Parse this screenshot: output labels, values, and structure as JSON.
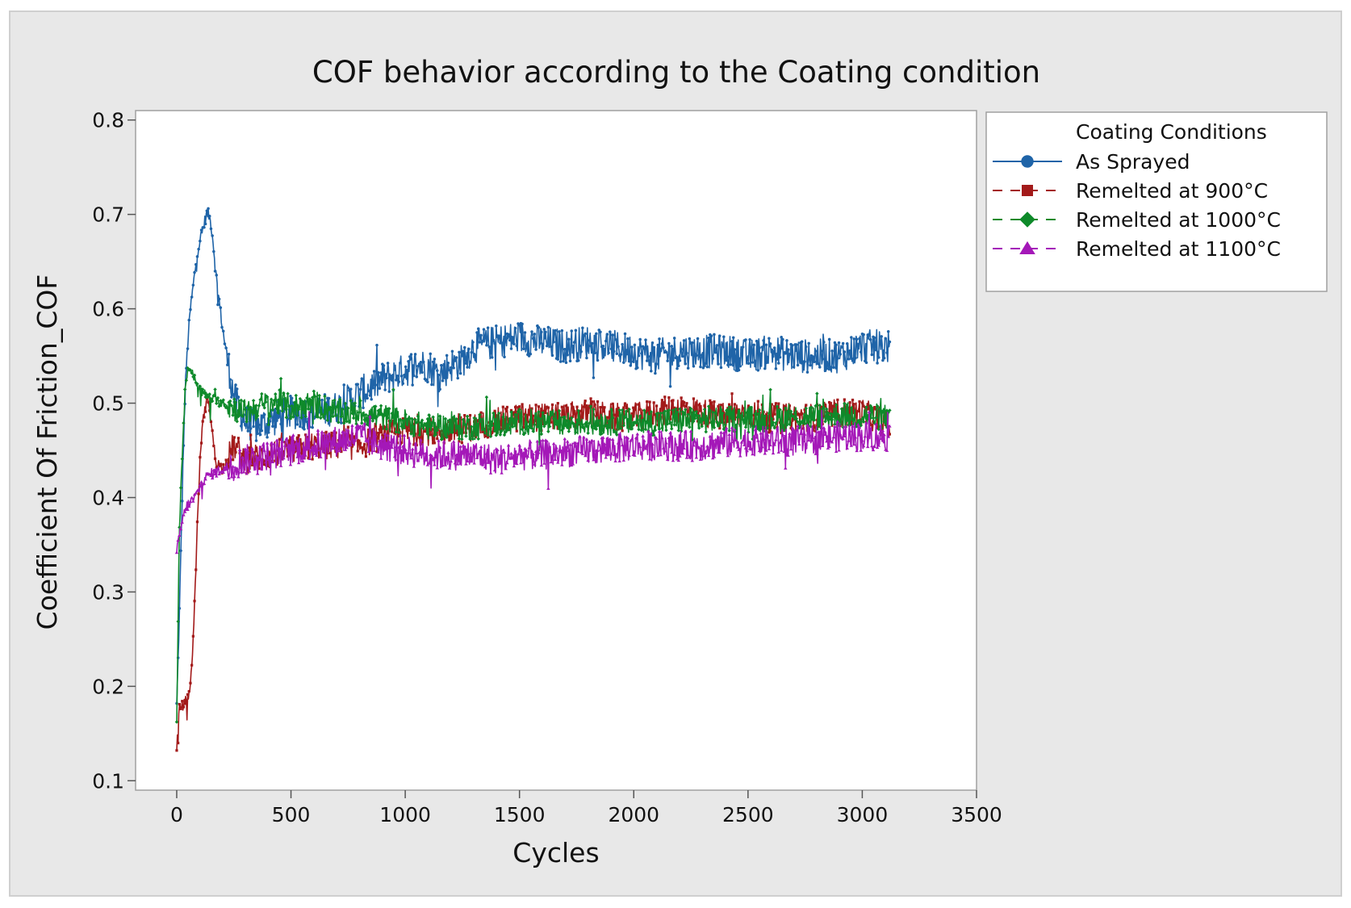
{
  "chart_data": {
    "type": "line",
    "title": "COF behavior according to the Coating condition",
    "xlabel": "Cycles",
    "ylabel": "Coefficient Of Friction_COF",
    "xlim": [
      -180,
      3500
    ],
    "ylim": [
      0.09,
      0.81
    ],
    "xticks": [
      0,
      500,
      1000,
      1500,
      2000,
      2500,
      3000,
      3500
    ],
    "yticks": [
      0.1,
      0.2,
      0.3,
      0.4,
      0.5,
      0.6,
      0.7,
      0.8
    ],
    "grid": false,
    "legend_title": "Coating Conditions",
    "legend_position": "right",
    "series": [
      {
        "name": "As Sprayed",
        "color": "#1f64a8",
        "marker": "circle",
        "dash": "solid",
        "noise": 0.018,
        "x": [
          0,
          10,
          20,
          30,
          40,
          50,
          60,
          70,
          80,
          90,
          100,
          110,
          120,
          130,
          140,
          150,
          160,
          170,
          180,
          190,
          200,
          220,
          240,
          260,
          280,
          300,
          350,
          400,
          450,
          500,
          600,
          700,
          800,
          900,
          1000,
          1050,
          1100,
          1150,
          1200,
          1250,
          1300,
          1400,
          1500,
          1600,
          1700,
          1800,
          1900,
          2000,
          2100,
          2200,
          2300,
          2400,
          2500,
          2600,
          2700,
          2800,
          2900,
          3000,
          3100,
          3120
        ],
        "y": [
          0.18,
          0.26,
          0.36,
          0.46,
          0.53,
          0.57,
          0.6,
          0.62,
          0.64,
          0.66,
          0.67,
          0.68,
          0.69,
          0.7,
          0.7,
          0.69,
          0.67,
          0.64,
          0.62,
          0.6,
          0.58,
          0.55,
          0.52,
          0.5,
          0.49,
          0.48,
          0.475,
          0.48,
          0.485,
          0.49,
          0.49,
          0.495,
          0.51,
          0.525,
          0.535,
          0.54,
          0.54,
          0.53,
          0.54,
          0.545,
          0.56,
          0.565,
          0.57,
          0.565,
          0.56,
          0.565,
          0.56,
          0.555,
          0.55,
          0.555,
          0.555,
          0.555,
          0.55,
          0.555,
          0.55,
          0.55,
          0.55,
          0.56,
          0.56,
          0.56
        ]
      },
      {
        "name": "Remelted at 900°C",
        "color": "#a31a1a",
        "marker": "square",
        "dash": "dashed",
        "noise": 0.015,
        "x": [
          0,
          10,
          20,
          30,
          40,
          50,
          60,
          70,
          80,
          90,
          100,
          110,
          120,
          130,
          140,
          150,
          170,
          200,
          250,
          300,
          400,
          500,
          600,
          700,
          800,
          900,
          1000,
          1100,
          1200,
          1300,
          1400,
          1500,
          1600,
          1700,
          1800,
          1900,
          2000,
          2100,
          2200,
          2300,
          2400,
          2500,
          2600,
          2700,
          2800,
          2900,
          3000,
          3100,
          3120
        ],
        "y": [
          0.13,
          0.175,
          0.18,
          0.18,
          0.185,
          0.19,
          0.2,
          0.24,
          0.3,
          0.37,
          0.43,
          0.47,
          0.49,
          0.5,
          0.505,
          0.48,
          0.44,
          0.43,
          0.455,
          0.44,
          0.445,
          0.45,
          0.455,
          0.455,
          0.455,
          0.465,
          0.47,
          0.47,
          0.47,
          0.475,
          0.48,
          0.485,
          0.485,
          0.485,
          0.49,
          0.485,
          0.485,
          0.49,
          0.495,
          0.49,
          0.485,
          0.49,
          0.485,
          0.485,
          0.485,
          0.49,
          0.49,
          0.48,
          0.47
        ]
      },
      {
        "name": "Remelted at 1000°C",
        "color": "#0e8a2a",
        "marker": "diamond",
        "dash": "dashed",
        "noise": 0.014,
        "x": [
          0,
          5,
          10,
          20,
          30,
          40,
          50,
          60,
          70,
          80,
          90,
          100,
          120,
          150,
          200,
          250,
          300,
          350,
          400,
          450,
          500,
          600,
          700,
          800,
          900,
          1000,
          1100,
          1200,
          1300,
          1400,
          1500,
          1600,
          1700,
          1800,
          1900,
          2000,
          2100,
          2200,
          2300,
          2400,
          2500,
          2600,
          2700,
          2800,
          2900,
          3000,
          3100,
          3120
        ],
        "y": [
          0.16,
          0.25,
          0.35,
          0.42,
          0.48,
          0.52,
          0.54,
          0.535,
          0.53,
          0.525,
          0.52,
          0.515,
          0.51,
          0.505,
          0.5,
          0.495,
          0.49,
          0.495,
          0.5,
          0.5,
          0.495,
          0.5,
          0.49,
          0.49,
          0.485,
          0.48,
          0.475,
          0.475,
          0.475,
          0.478,
          0.48,
          0.48,
          0.478,
          0.48,
          0.48,
          0.48,
          0.48,
          0.482,
          0.483,
          0.483,
          0.483,
          0.483,
          0.485,
          0.485,
          0.487,
          0.487,
          0.485,
          0.48
        ]
      },
      {
        "name": "Remelted at 1100°C",
        "color": "#a418b8",
        "marker": "triangle",
        "dash": "dashed",
        "noise": 0.016,
        "x": [
          0,
          10,
          20,
          30,
          40,
          60,
          80,
          100,
          120,
          150,
          200,
          250,
          300,
          400,
          500,
          600,
          700,
          800,
          900,
          1000,
          1100,
          1200,
          1300,
          1400,
          1500,
          1600,
          1700,
          1800,
          1900,
          2000,
          2100,
          2200,
          2300,
          2400,
          2500,
          2600,
          2700,
          2800,
          2900,
          3000,
          3100,
          3120
        ],
        "y": [
          0.34,
          0.36,
          0.37,
          0.38,
          0.39,
          0.395,
          0.4,
          0.41,
          0.42,
          0.425,
          0.43,
          0.435,
          0.44,
          0.445,
          0.45,
          0.455,
          0.46,
          0.465,
          0.455,
          0.45,
          0.445,
          0.445,
          0.445,
          0.44,
          0.445,
          0.445,
          0.448,
          0.45,
          0.452,
          0.455,
          0.455,
          0.455,
          0.455,
          0.458,
          0.46,
          0.46,
          0.46,
          0.462,
          0.465,
          0.465,
          0.465,
          0.465
        ]
      }
    ]
  }
}
